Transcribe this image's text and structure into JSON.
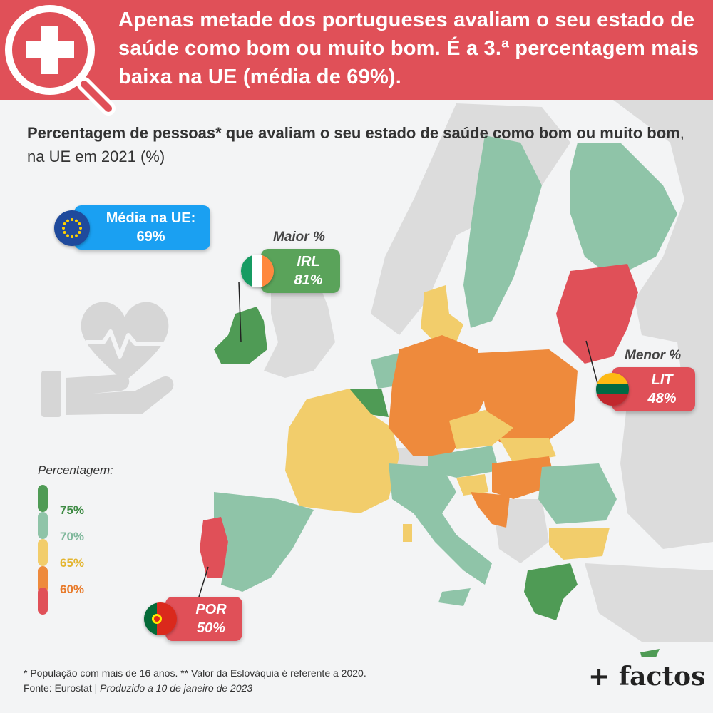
{
  "header": {
    "title": "Apenas metade dos portugueses avaliam o seu estado de saúde como bom ou muito bom. É a 3.ª percentagem mais baixa na UE (média de 69%)."
  },
  "subtitle": {
    "bold": "Percentagem de pessoas* que avaliam o seu estado de saúde como bom ou muito bom",
    "rest": ", na UE em 2021 (%)"
  },
  "eu_average": {
    "label": "Média na UE:",
    "value": "69%"
  },
  "highest": {
    "label": "Maior %",
    "country": "IRL",
    "value": "81%"
  },
  "lowest": {
    "label": "Menor %",
    "country": "LIT",
    "value": "48%"
  },
  "portugal": {
    "country": "POR",
    "value": "50%"
  },
  "legend": {
    "title": "Percentagem:",
    "items": [
      {
        "label": "75%",
        "color": "#4f9b55",
        "text_color": "#3d8a43"
      },
      {
        "label": "70%",
        "color": "#8fc4a8",
        "text_color": "#7fb89c"
      },
      {
        "label": "65%",
        "color": "#f2cd6b",
        "text_color": "#e3b52f"
      },
      {
        "label": "60%",
        "color": "#ee8a3c",
        "text_color": "#e87a2a"
      },
      {
        "label": "",
        "color": "#e05058",
        "text_color": "#e05058"
      }
    ]
  },
  "footer": {
    "note": "* População com mais de 16 anos. ** Valor da Eslováquia é referente a 2020.",
    "source": "Fonte: Eurostat | ",
    "produced": "Produzido a 10 de janeiro de 2023",
    "brand": "+ factos"
  },
  "colors": {
    "banner": "#e05058",
    "eu_blue": "#1aa0f2",
    "non_eu": "#dcdcdc",
    "sea": "#f3f4f5"
  },
  "icons": [
    "health-search-icon",
    "heart-hand-icon",
    "eu-flag-icon",
    "ireland-flag-icon",
    "lithuania-flag-icon",
    "portugal-flag-icon"
  ]
}
